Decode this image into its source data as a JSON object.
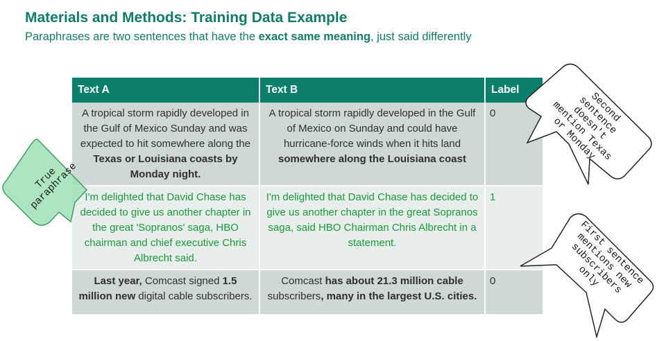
{
  "header": {
    "title": "Materials and Methods: Training Data Example",
    "subtitle_pre": "Paraphrases are two sentences that have the ",
    "subtitle_bold": "exact same meaning",
    "subtitle_post": ", just said differently"
  },
  "table": {
    "headers": [
      "Text A",
      "Text B",
      "Label"
    ],
    "rows": [
      {
        "a_pre": "A tropical storm rapidly developed in the Gulf of Mexico Sunday and was expected to hit somewhere along the ",
        "a_bold": "Texas or Louisiana coasts by Monday night.",
        "b_pre": "A tropical storm rapidly developed in the Gulf of Mexico on Sunday and could have hurricane-force winds when it hits land ",
        "b_bold": "somewhere along the Louisiana coast",
        "label": "0"
      },
      {
        "a": "I'm delighted that David Chase has decided to give us another chapter in the great 'Sopranos' saga, HBO chairman and chief executive Chris Albrecht said.",
        "b": "I'm delighted that David Chase has decided to give us another chapter in the great Sopranos saga, said HBO Chairman Chris Albrecht in a statement.",
        "label": "1"
      },
      {
        "a_b1": "Last year,",
        "a_t1": " Comcast signed ",
        "a_b2": "1.5 million new",
        "a_t2": " digital cable subscribers.",
        "b_t1": "Comcast ",
        "b_b1": "has about 21.3 million cable",
        "b_t2": " subscribers",
        "b_b2": ", many in the largest U.S. cities.",
        "label": "0"
      }
    ]
  },
  "callouts": {
    "true_paraphrase": "True\nparaphrase",
    "second_sentence": "Second\nsentence\ndoesn't\nmention Texas\nor Monday",
    "first_sentence": "First sentence\nmentions new\nsubscribers\nonly"
  },
  "colors": {
    "accent": "#0a7f6c",
    "green_text": "#1a9a3a",
    "callout_green": "#9fe0b8"
  }
}
